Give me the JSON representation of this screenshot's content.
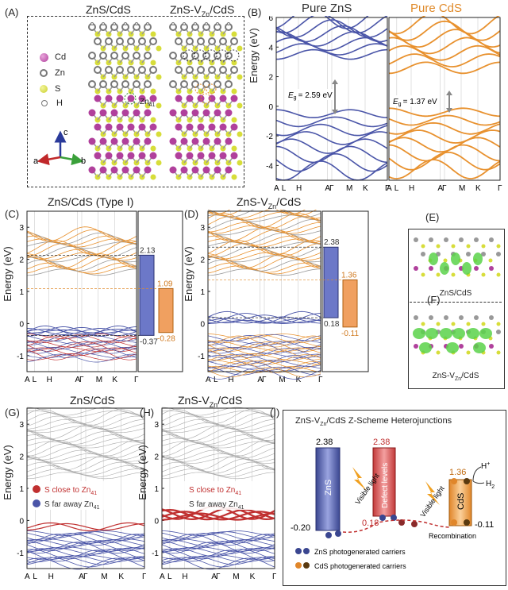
{
  "panels": {
    "A": {
      "label": "(A)",
      "title_left": "ZnS/CdS",
      "title_right_main": "ZnS-V",
      "title_right_sub": "Zn",
      "title_right_tail": "/CdS",
      "site_label_main": "Zn",
      "site_label_sub": "41",
      "legend": [
        {
          "name": "Cd",
          "color": "#b0409c"
        },
        {
          "name": "Zn",
          "color": "#7a7a7a"
        },
        {
          "name": "S",
          "color": "#d7dd3a"
        },
        {
          "name": "H",
          "color": "#ffffff"
        }
      ],
      "axes": {
        "c": "c",
        "a": "a",
        "b": "b"
      }
    },
    "B": {
      "label": "(B)",
      "title_left": "Pure ZnS",
      "title_right": "Pure CdS",
      "ylabel": "Energy (eV)",
      "yticks": [
        "6",
        "4",
        "2",
        "0",
        "-2",
        "-4"
      ],
      "kpoints": [
        "A",
        "L",
        "H",
        "A",
        "Γ",
        "M",
        "K",
        "Γ"
      ],
      "gap_left_sym": "E",
      "gap_left_sub": "g",
      "gap_left_val": "= 2.59 eV",
      "gap_right_sym": "E",
      "gap_right_sub": "g",
      "gap_right_val": "= 1.37 eV",
      "colors": {
        "zns": "#4a55a8",
        "cds": "#e8912e"
      }
    },
    "C": {
      "label": "(C)",
      "title": "ZnS/CdS (Type Ⅰ)",
      "ylabel": "Energy (eV)",
      "yticks": [
        "3",
        "2",
        "1",
        "0",
        "-1"
      ],
      "kpoints": [
        "A",
        "L",
        "H",
        "A",
        "Γ",
        "M",
        "K",
        "Γ"
      ],
      "bar_zns_top": "2.13",
      "bar_zns_bottom": "-0.37",
      "bar_cds_top": "1.09",
      "bar_cds_bottom": "-0.28"
    },
    "D": {
      "label": "(D)",
      "title_main": "ZnS-V",
      "title_sub": "Zn",
      "title_tail": "/CdS",
      "ylabel": "Energy (eV)",
      "yticks": [
        "3",
        "2",
        "1",
        "0",
        "-1"
      ],
      "kpoints": [
        "A",
        "L",
        "H",
        "A",
        "Γ",
        "M",
        "K",
        "Γ"
      ],
      "bar_zns_top": "2.38",
      "bar_zns_bottom": "0.18",
      "bar_cds_top": "1.36",
      "bar_cds_bottom": "-0.11"
    },
    "E": {
      "label": "(E)",
      "caption": "ZnS/CdS"
    },
    "F": {
      "label": "(F)",
      "caption_main": "ZnS-V",
      "caption_sub": "Zn",
      "caption_tail": "/CdS"
    },
    "G": {
      "label": "(G)",
      "title": "ZnS/CdS",
      "ylabel": "Energy (eV)",
      "yticks": [
        "3",
        "2",
        "1",
        "0",
        "-1"
      ],
      "kpoints": [
        "A",
        "L",
        "H",
        "A",
        "Γ",
        "M",
        "K",
        "Γ"
      ],
      "legend_close_main": "S close to Zn",
      "legend_close_sub": "41",
      "legend_far_main": "S far away Zn",
      "legend_far_sub": "41",
      "colors": {
        "close": "#c03030",
        "far": "#4a55a8"
      }
    },
    "H": {
      "label": "(H)",
      "title_main": "ZnS-V",
      "title_sub": "Zn",
      "title_tail": "/CdS",
      "ylabel": "Energy (eV)",
      "yticks": [
        "3",
        "2",
        "1",
        "0",
        "-1"
      ],
      "kpoints": [
        "A",
        "L",
        "H",
        "A",
        "Γ",
        "M",
        "K",
        "Γ"
      ],
      "legend_close_main": "S close to Zn",
      "legend_close_sub": "41",
      "legend_far_main": "S far away Zn",
      "legend_far_sub": "41"
    },
    "I": {
      "label": "(I)",
      "title_main": "ZnS-V",
      "title_sub": "Zn",
      "title_tail": "/CdS Z-Scheme Heterojunctions",
      "zns_label": "ZnS",
      "zns_top": "2.38",
      "zns_bottom": "-0.20",
      "defect_label": "Defect levels",
      "defect_top": "2.38",
      "cds_label": "CdS",
      "cds_top": "1.36",
      "cds_bottom": "-0.11",
      "defect_bottom": "0.18",
      "light_left": "Visible light",
      "light_right": "Visible light",
      "h_plus": "H",
      "h_plus_sup": "+",
      "h2": "H",
      "h2_sub": "2",
      "recombination": "Recombination",
      "legend_zns": "ZnS photogenerated carriers",
      "legend_cds": "CdS photogenerated carriers"
    }
  }
}
